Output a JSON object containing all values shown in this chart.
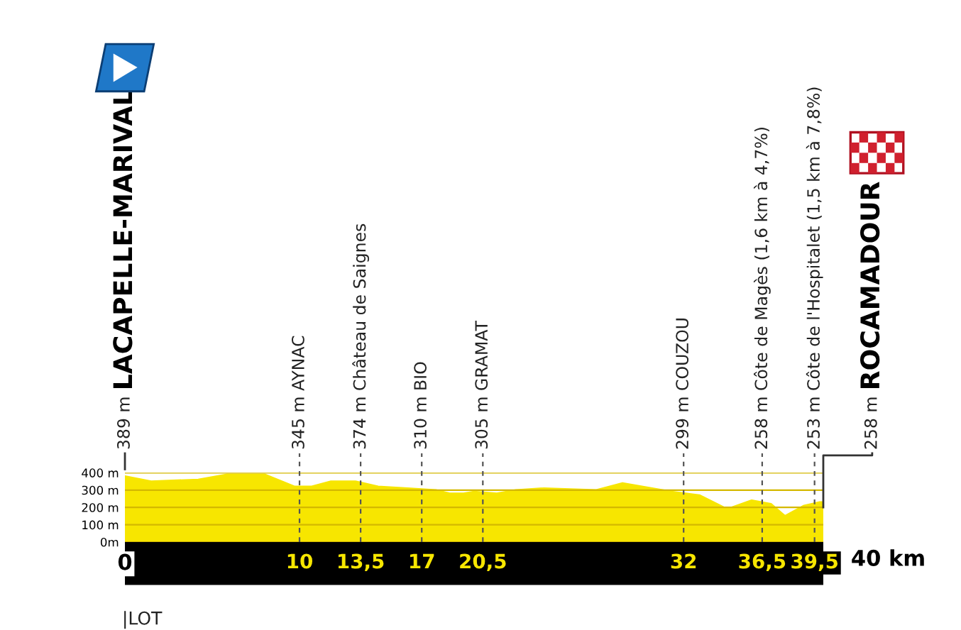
{
  "chart_data": {
    "type": "area",
    "x": [
      0,
      1.5,
      4.2,
      5.85,
      8.0,
      9.7,
      10.7,
      11.8,
      13.2,
      14.5,
      16.2,
      17.8,
      18.6,
      19.4,
      20.0,
      21.3,
      22.4,
      24.0,
      27.0,
      28.5,
      30.2,
      31.3,
      32.9,
      34.5,
      35.9,
      37.0,
      37.8,
      38.9,
      39.8,
      40
    ],
    "series": [
      {
        "color": "#f7e600",
        "values": [
          380,
          350,
          360,
          390,
          390,
          320,
          320,
          350,
          350,
          320,
          310,
          300,
          280,
          280,
          290,
          280,
          300,
          310,
          300,
          340,
          310,
          290,
          270,
          190,
          240,
          220,
          150,
          210,
          230,
          230
        ]
      }
    ],
    "xlim": [
      0,
      40
    ],
    "xticks": [
      {
        "value": 0,
        "label": "0"
      },
      10,
      {
        "value": 13.5,
        "label": "13,5"
      },
      17,
      {
        "value": 20.5,
        "label": "20,5"
      },
      32,
      {
        "value": 36.5,
        "label": "36,5"
      },
      {
        "value": 39.5,
        "label": "39,5"
      }
    ],
    "ylim": [
      0,
      400
    ],
    "yticks": [
      {
        "value": 0,
        "label": "0m"
      },
      {
        "value": 100,
        "label": "100 m"
      },
      {
        "value": 200,
        "label": "200 m"
      },
      {
        "value": 300,
        "label": "300 m"
      },
      {
        "value": 400,
        "label": "400 m"
      }
    ],
    "grid": "y",
    "ref_lines": [
      {
        "axis": "x",
        "value": 0,
        "label": "389 m",
        "line_style": "solid"
      },
      {
        "axis": "x",
        "value": 10,
        "label": "345 m AYNAC",
        "line_style": "dashed"
      },
      {
        "axis": "x",
        "value": 13.5,
        "label": "374 m Château de Saignes",
        "line_style": "dashed"
      },
      {
        "axis": "x",
        "value": 17,
        "label": "310 m BIO",
        "line_style": "dashed"
      },
      {
        "axis": "x",
        "value": 20.5,
        "label": "305 m GRAMAT",
        "line_style": "dashed"
      },
      {
        "axis": "x",
        "value": 32,
        "label": "299 m COUZOU",
        "line_style": "dashed"
      },
      {
        "axis": "x",
        "value": 36.5,
        "label": "258 m Côte de Magès (1,6 km à 4,7%)",
        "line_style": "dashed"
      },
      {
        "axis": "x",
        "value": 39.5,
        "label": "253 m Côte de l'Hospitalet (1,5 km à 7,8%)",
        "line_style": "dashed"
      },
      {
        "axis": "x",
        "value": 40,
        "label": "258 m",
        "line_style": "solid"
      }
    ],
    "annotations": [
      "LACAPELLE-MARIVAL",
      "ROCAMADOUR",
      "|LOT",
      "40 km"
    ]
  }
}
